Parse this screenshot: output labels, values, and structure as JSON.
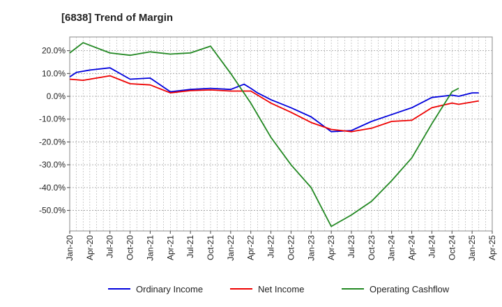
{
  "chart_data": {
    "type": "line",
    "title": "[6838]  Trend of Margin",
    "xlabel": "",
    "ylabel": "",
    "x": [
      "Jan-20",
      "Apr-20",
      "Jul-20",
      "Oct-20",
      "Jan-21",
      "Apr-21",
      "Jul-21",
      "Oct-21",
      "Jan-22",
      "Apr-22",
      "Jul-22",
      "Oct-22",
      "Jan-23",
      "Apr-23",
      "Jul-23",
      "Oct-23",
      "Jan-24",
      "Apr-24",
      "Jul-24",
      "Oct-24",
      "Jan-25"
    ],
    "x_tick_labels": [
      "Jan-20",
      "Apr-20",
      "Jul-20",
      "Oct-20",
      "Jan-21",
      "Apr-21",
      "Jul-21",
      "Oct-21",
      "Jan-22",
      "Apr-22",
      "Jul-22",
      "Oct-22",
      "Jan-23",
      "Apr-23",
      "Jul-23",
      "Oct-23",
      "Jan-24",
      "Apr-24",
      "Jul-24",
      "Oct-24",
      "Jan-25",
      "Apr-25"
    ],
    "y_tick_labels": [
      "20.0%",
      "10.0%",
      "0.0%",
      "-10.0%",
      "-20.0%",
      "-30.0%",
      "-40.0%",
      "-50.0%"
    ],
    "y_ticks": [
      20,
      10,
      0,
      -10,
      -20,
      -30,
      -40,
      -50
    ],
    "ylim": [
      -59,
      26
    ],
    "grid": true,
    "legend_position": "bottom",
    "series": [
      {
        "name": "Ordinary Income",
        "color": "#0000dd",
        "points": [
          [
            "Jan-20",
            8.5
          ],
          [
            "Feb-20",
            10.5
          ],
          [
            "Apr-20",
            11.5
          ],
          [
            "Jul-20",
            12.5
          ],
          [
            "Oct-20",
            7.5
          ],
          [
            "Jan-21",
            8.0
          ],
          [
            "Apr-21",
            2.0
          ],
          [
            "Jul-21",
            3.0
          ],
          [
            "Oct-21",
            3.5
          ],
          [
            "Jan-22",
            3.0
          ],
          [
            "Mar-22",
            5.3
          ],
          [
            "Apr-22",
            3.5
          ],
          [
            "May-22",
            1.5
          ],
          [
            "Jul-22",
            -1.5
          ],
          [
            "Oct-22",
            -5.0
          ],
          [
            "Jan-23",
            -9.0
          ],
          [
            "Apr-23",
            -15.5
          ],
          [
            "Jul-23",
            -15.0
          ],
          [
            "Oct-23",
            -11.0
          ],
          [
            "Jan-24",
            -8.0
          ],
          [
            "Apr-24",
            -5.0
          ],
          [
            "Jul-24",
            -0.5
          ],
          [
            "Oct-24",
            0.5
          ],
          [
            "Nov-24",
            0.0
          ],
          [
            "Jan-25",
            1.5
          ],
          [
            "Feb-25",
            1.5
          ]
        ]
      },
      {
        "name": "Net Income",
        "color": "#ee0000",
        "points": [
          [
            "Jan-20",
            7.5
          ],
          [
            "Mar-20",
            7.0
          ],
          [
            "Jul-20",
            9.0
          ],
          [
            "Oct-20",
            5.5
          ],
          [
            "Jan-21",
            5.0
          ],
          [
            "Apr-21",
            1.5
          ],
          [
            "Jul-21",
            2.5
          ],
          [
            "Oct-21",
            2.8
          ],
          [
            "Jan-22",
            2.3
          ],
          [
            "Apr-22",
            2.3
          ],
          [
            "Jul-22",
            -3.0
          ],
          [
            "Oct-22",
            -7.0
          ],
          [
            "Jan-23",
            -11.5
          ],
          [
            "Apr-23",
            -14.5
          ],
          [
            "Jul-23",
            -15.5
          ],
          [
            "Oct-23",
            -14.0
          ],
          [
            "Jan-24",
            -11.0
          ],
          [
            "Apr-24",
            -10.5
          ],
          [
            "Jul-24",
            -5.0
          ],
          [
            "Oct-24",
            -3.0
          ],
          [
            "Nov-24",
            -3.5
          ],
          [
            "Feb-25",
            -2.0
          ]
        ]
      },
      {
        "name": "Operating Cashflow",
        "color": "#228822",
        "points": [
          [
            "Jan-20",
            19.0
          ],
          [
            "Mar-20",
            23.5
          ],
          [
            "Jul-20",
            19.0
          ],
          [
            "Oct-20",
            18.0
          ],
          [
            "Jan-21",
            19.5
          ],
          [
            "Apr-21",
            18.5
          ],
          [
            "Jul-21",
            19.0
          ],
          [
            "Oct-21",
            22.0
          ],
          [
            "Jan-22",
            10.0
          ],
          [
            "Apr-22",
            -3.0
          ],
          [
            "Jul-22",
            -18.0
          ],
          [
            "Oct-22",
            -30.0
          ],
          [
            "Jan-23",
            -40.0
          ],
          [
            "Apr-23",
            -57.0
          ],
          [
            "Jul-23",
            -52.0
          ],
          [
            "Oct-23",
            -46.0
          ],
          [
            "Jan-24",
            -37.0
          ],
          [
            "Apr-24",
            -27.0
          ],
          [
            "Jul-24",
            -12.0
          ],
          [
            "Oct-24",
            2.0
          ],
          [
            "Nov-24",
            3.5
          ]
        ]
      }
    ]
  }
}
